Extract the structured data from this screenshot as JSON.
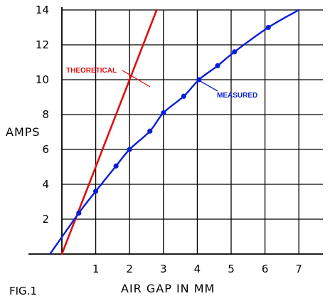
{
  "chart_data": {
    "type": "line",
    "figure_label": "FIG.1",
    "xlabel": "AIR GAP IN MM",
    "ylabel": "AMPS",
    "xlim": [
      0,
      7
    ],
    "ylim": [
      0,
      14
    ],
    "xticks": [
      1,
      2,
      3,
      4,
      5,
      6,
      7
    ],
    "yticks": [
      2,
      4,
      6,
      8,
      10,
      12,
      14
    ],
    "grid": true,
    "series": [
      {
        "name": "THEORETICAL",
        "color": "#e01010",
        "marker": "none",
        "x": [
          0,
          2.8
        ],
        "y": [
          0,
          14
        ]
      },
      {
        "name": "MEASURED",
        "color": "#0a1fd6",
        "marker": "circle",
        "x": [
          -0.35,
          0.5,
          1.0,
          1.6,
          2.0,
          2.6,
          3.0,
          3.6,
          4.05,
          4.6,
          5.1,
          6.1,
          7.0
        ],
        "y": [
          0.0,
          2.35,
          3.6,
          5.05,
          6.0,
          7.05,
          8.1,
          9.05,
          10.0,
          10.8,
          11.6,
          13.0,
          14.0
        ],
        "points": [
          [
            0.5,
            2.35
          ],
          [
            1.0,
            3.6
          ],
          [
            1.6,
            5.05
          ],
          [
            2.0,
            6.0
          ],
          [
            2.6,
            7.05
          ],
          [
            3.0,
            8.1
          ],
          [
            3.6,
            9.05
          ],
          [
            4.05,
            10.0
          ],
          [
            4.6,
            10.8
          ],
          [
            5.1,
            11.6
          ],
          [
            6.1,
            13.0
          ]
        ]
      }
    ]
  }
}
